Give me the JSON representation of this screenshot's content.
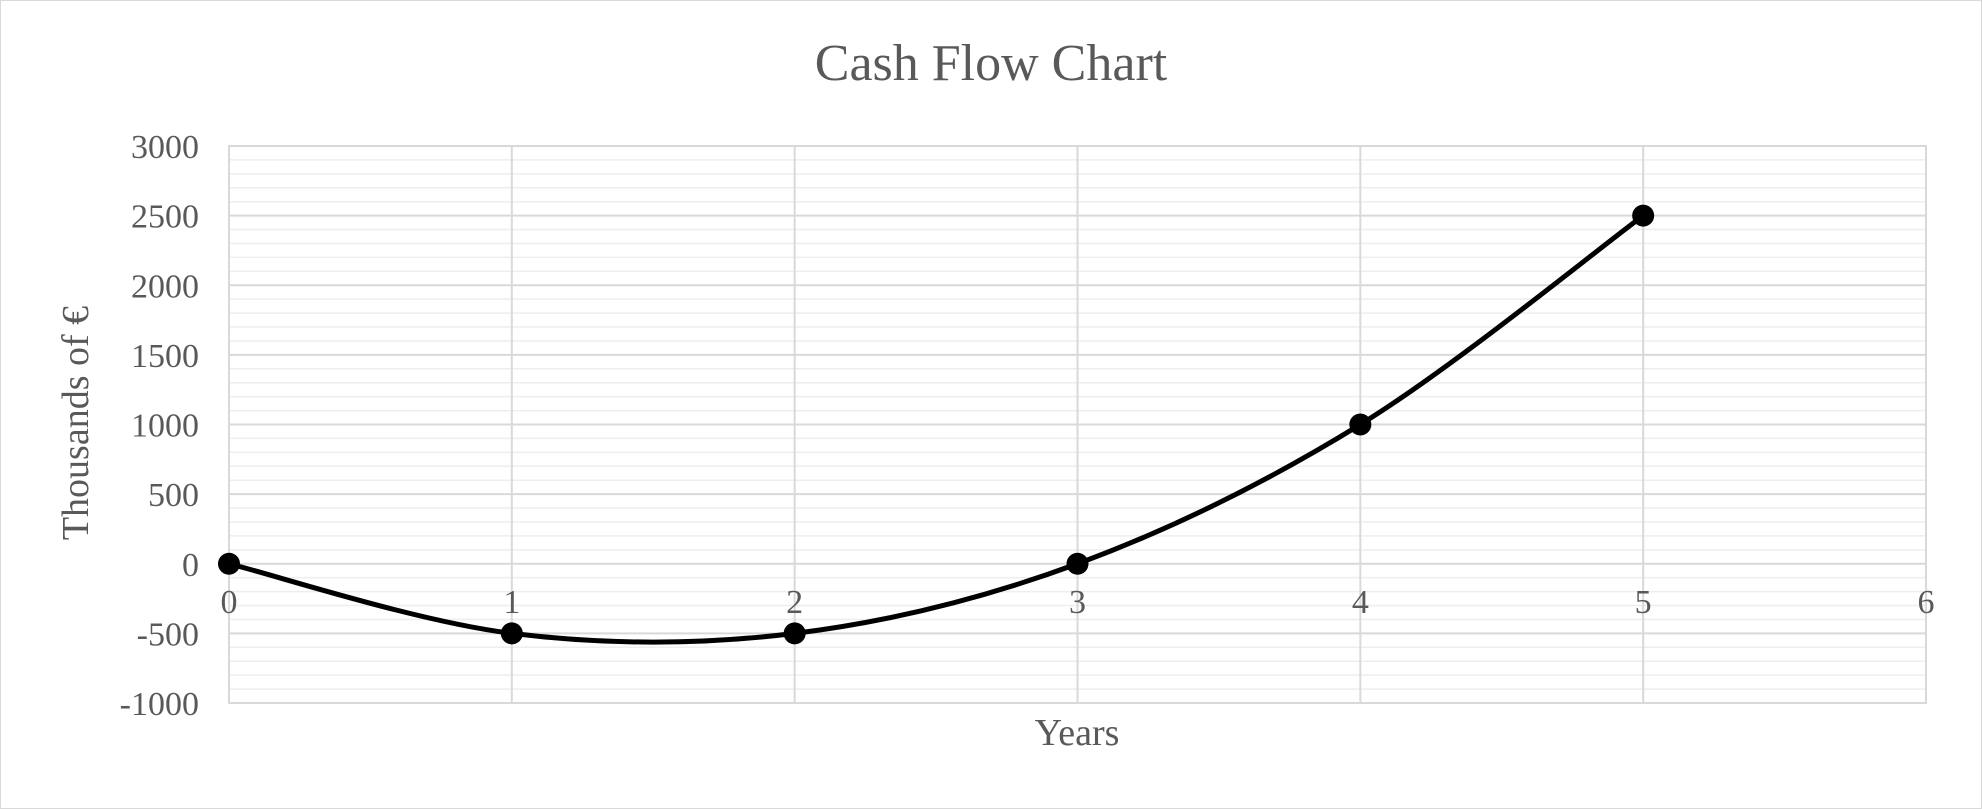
{
  "chart_data": {
    "type": "scatter",
    "title": "Cash Flow Chart",
    "xlabel": "Years",
    "ylabel": "Thousands of €",
    "x": [
      0,
      1,
      2,
      3,
      4,
      5
    ],
    "y": [
      0,
      -500,
      -500,
      0,
      1000,
      2500
    ],
    "xlim": [
      0,
      6
    ],
    "ylim": [
      -1000,
      3000
    ],
    "x_ticks": [
      "0",
      "1",
      "2",
      "3",
      "4",
      "5",
      "6"
    ],
    "y_ticks": [
      "3000",
      "2500",
      "2000",
      "1500",
      "1000",
      "500",
      "0",
      "-500",
      "-1000"
    ],
    "y_tick_values": [
      3000,
      2500,
      2000,
      1500,
      1000,
      500,
      0,
      -500,
      -1000
    ],
    "line_style": "smooth",
    "marker": "circle",
    "grid": true,
    "minor_grid": true,
    "legend": "none",
    "colors": {
      "series": "#000000",
      "grid_major": "#d9d9d9",
      "grid_minor": "#eeeeee",
      "text": "#595959"
    }
  }
}
